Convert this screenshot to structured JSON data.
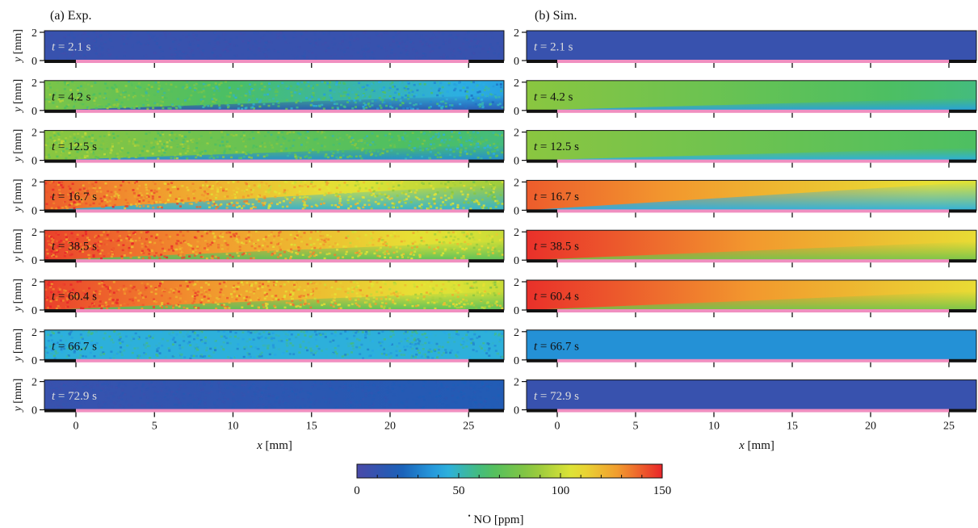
{
  "chart_data": {
    "type": "heatmap",
    "colormap": [
      "#4a4aa8",
      "#1a5fb8",
      "#2aaee8",
      "#4bbf63",
      "#8cc63f",
      "#e6e635",
      "#f29a2e",
      "#e8252a"
    ],
    "colorbar": {
      "min": 0,
      "max": 150,
      "ticks": [
        "0",
        "50",
        "100",
        "150"
      ],
      "label": "NO [ppm]",
      "label_prefix": "•",
      "label_main": "NO [ppm]"
    },
    "xlabel": "x [mm]",
    "ylabel": "y [mm]",
    "xlim": [
      -2.4,
      27
    ],
    "ylim": [
      0,
      2
    ],
    "xticks": [
      "0",
      "5",
      "10",
      "15",
      "20",
      "25"
    ],
    "yticks": [
      "0",
      "2"
    ],
    "surface_color": "#f08fc0",
    "panels": [
      {
        "label": "(a) Exp.",
        "rows": [
          {
            "time": "t = 2.1 s",
            "t_var": "t",
            "t_rest": " = 2.1 s",
            "left": 8,
            "right": 8,
            "spread": 0,
            "noise": 0.08,
            "label_color": "#dddddd"
          },
          {
            "time": "t = 4.2 s",
            "t_var": "t",
            "t_rest": " = 4.2 s",
            "left": 80,
            "right": 40,
            "spread": 1.5,
            "noise": 0.35,
            "label_color": "#111111"
          },
          {
            "time": "t = 12.5 s",
            "t_var": "t",
            "t_rest": " = 12.5 s",
            "left": 85,
            "right": 60,
            "spread": 1.5,
            "noise": 0.35,
            "label_color": "#111111"
          },
          {
            "time": "t = 16.7 s",
            "t_var": "t",
            "t_rest": " = 16.7 s",
            "left": 140,
            "right": 90,
            "spread": 2.5,
            "noise": 0.35,
            "label_color": "#111111"
          },
          {
            "time": "t = 38.5 s",
            "t_var": "t",
            "t_rest": " = 38.5 s",
            "left": 145,
            "right": 100,
            "spread": 1.8,
            "noise": 0.35,
            "label_color": "#111111"
          },
          {
            "time": "t = 60.4 s",
            "t_var": "t",
            "t_rest": " = 60.4 s",
            "left": 145,
            "right": 100,
            "spread": 1.8,
            "noise": 0.35,
            "label_color": "#111111"
          },
          {
            "time": "t = 66.7 s",
            "t_var": "t",
            "t_rest": " = 66.7 s",
            "left": 45,
            "right": 45,
            "spread": 0,
            "noise": 0.3,
            "label_color": "#111111"
          },
          {
            "time": "t = 72.9 s",
            "t_var": "t",
            "t_rest": " = 72.9 s",
            "left": 8,
            "right": 18,
            "spread": 0,
            "noise": 0.08,
            "label_color": "#dddddd"
          }
        ]
      },
      {
        "label": "(b) Sim.",
        "rows": [
          {
            "time": "t = 2.1 s",
            "t_var": "t",
            "t_rest": " = 2.1 s",
            "left": 8,
            "right": 8,
            "spread": 0,
            "noise": 0,
            "label_color": "#dddddd"
          },
          {
            "time": "t = 4.2 s",
            "t_var": "t",
            "t_rest": " = 4.2 s",
            "left": 85,
            "right": 60,
            "spread": 1.2,
            "noise": 0,
            "label_color": "#111111"
          },
          {
            "time": "t = 12.5 s",
            "t_var": "t",
            "t_rest": " = 12.5 s",
            "left": 85,
            "right": 65,
            "spread": 1.2,
            "noise": 0,
            "label_color": "#111111"
          },
          {
            "time": "t = 16.7 s",
            "t_var": "t",
            "t_rest": " = 16.7 s",
            "left": 140,
            "right": 105,
            "spread": 3.5,
            "noise": 0,
            "label_color": "#111111"
          },
          {
            "time": "t = 38.5 s",
            "t_var": "t",
            "t_rest": " = 38.5 s",
            "left": 148,
            "right": 110,
            "spread": 1.8,
            "noise": 0,
            "label_color": "#111111"
          },
          {
            "time": "t = 60.4 s",
            "t_var": "t",
            "t_rest": " = 60.4 s",
            "left": 148,
            "right": 110,
            "spread": 1.8,
            "noise": 0,
            "label_color": "#111111"
          },
          {
            "time": "t = 66.7 s",
            "t_var": "t",
            "t_rest": " = 66.7 s",
            "left": 35,
            "right": 35,
            "spread": 0,
            "noise": 0,
            "label_color": "#111111"
          },
          {
            "time": "t = 72.9 s",
            "t_var": "t",
            "t_rest": " = 72.9 s",
            "left": 8,
            "right": 8,
            "spread": 0,
            "noise": 0,
            "label_color": "#dddddd"
          }
        ]
      }
    ]
  }
}
